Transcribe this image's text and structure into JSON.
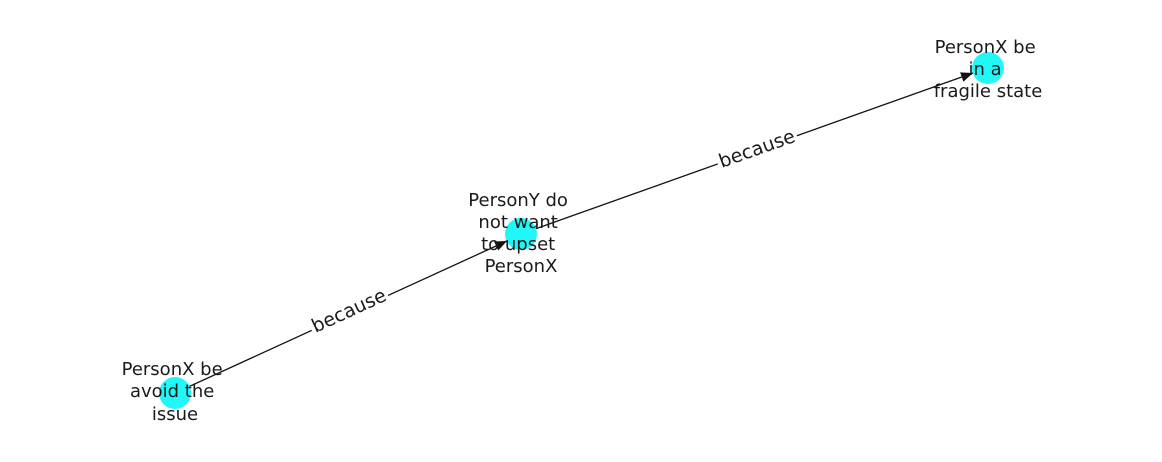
{
  "diagram": {
    "node_color": "#22f7f7",
    "edge_color": "#111111",
    "nodes": [
      {
        "id": "n1",
        "lines": [
          "PersonX be",
          "avoid the",
          "issue"
        ]
      },
      {
        "id": "n2",
        "lines": [
          "PersonY do",
          "not want",
          "to upset",
          "PersonX"
        ]
      },
      {
        "id": "n3",
        "lines": [
          "PersonX be",
          "in a",
          "fragile state"
        ]
      }
    ],
    "edges": [
      {
        "from": "n1",
        "to": "n2",
        "label": "because"
      },
      {
        "from": "n2",
        "to": "n3",
        "label": "because"
      }
    ]
  }
}
